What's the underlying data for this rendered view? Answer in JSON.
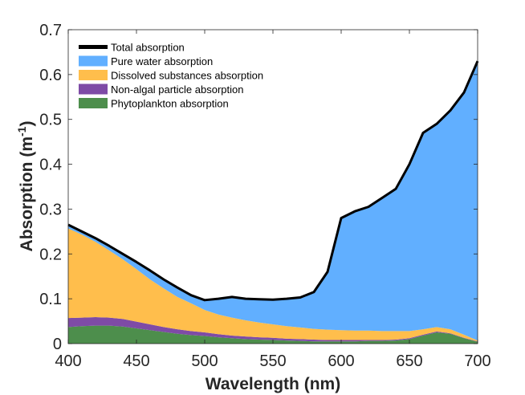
{
  "chart_data": {
    "type": "area",
    "stacked": true,
    "title": "",
    "xlabel": "Wavelength (nm)",
    "ylabel": "Absorption (m",
    "ylabel_sup": "-1",
    "ylabel_close": ")",
    "xlim": [
      400,
      700
    ],
    "ylim": [
      0,
      0.7
    ],
    "xticks": [
      "400",
      "450",
      "500",
      "550",
      "600",
      "650",
      "700"
    ],
    "yticks": [
      "0",
      "0.1",
      "0.2",
      "0.3",
      "0.4",
      "0.5",
      "0.6",
      "0.7"
    ],
    "grid": false,
    "legend_position": "top-left",
    "x": [
      400,
      410,
      420,
      430,
      440,
      450,
      460,
      470,
      480,
      490,
      500,
      510,
      520,
      530,
      540,
      550,
      560,
      570,
      580,
      590,
      600,
      610,
      620,
      630,
      640,
      650,
      660,
      670,
      680,
      690,
      700
    ],
    "series": [
      {
        "name": "Total absorption",
        "color": "#000000",
        "kind": "line",
        "values": [
          0.265,
          0.25,
          0.235,
          0.218,
          0.2,
          0.182,
          0.163,
          0.143,
          0.125,
          0.108,
          0.097,
          0.1,
          0.104,
          0.1,
          0.099,
          0.098,
          0.1,
          0.103,
          0.115,
          0.16,
          0.28,
          0.295,
          0.305,
          0.325,
          0.345,
          0.4,
          0.47,
          0.49,
          0.52,
          0.56,
          0.63
        ]
      },
      {
        "name": "Pure water absorption",
        "color": "#61AFFF",
        "kind": "area",
        "values": [
          0.008,
          0.007,
          0.008,
          0.01,
          0.012,
          0.016,
          0.02,
          0.02,
          0.021,
          0.018,
          0.022,
          0.035,
          0.046,
          0.048,
          0.052,
          0.055,
          0.061,
          0.067,
          0.082,
          0.129,
          0.25,
          0.266,
          0.276,
          0.297,
          0.317,
          0.372,
          0.438,
          0.453,
          0.488,
          0.54,
          0.623
        ]
      },
      {
        "name": "Dissolved substances absorption",
        "color": "#FFBE4C",
        "kind": "area",
        "values": [
          0.2,
          0.185,
          0.168,
          0.15,
          0.133,
          0.117,
          0.1,
          0.086,
          0.072,
          0.062,
          0.05,
          0.044,
          0.04,
          0.036,
          0.033,
          0.03,
          0.028,
          0.026,
          0.024,
          0.023,
          0.022,
          0.021,
          0.021,
          0.02,
          0.019,
          0.016,
          0.012,
          0.01,
          0.009,
          0.007,
          0.002
        ]
      },
      {
        "name": "Non-algal particle absorption",
        "color": "#7E4BA6",
        "kind": "area",
        "values": [
          0.02,
          0.019,
          0.019,
          0.018,
          0.017,
          0.015,
          0.013,
          0.011,
          0.01,
          0.009,
          0.008,
          0.007,
          0.006,
          0.006,
          0.005,
          0.005,
          0.004,
          0.004,
          0.004,
          0.003,
          0.003,
          0.003,
          0.002,
          0.002,
          0.002,
          0.002,
          0.002,
          0.002,
          0.001,
          0.001,
          0.001
        ]
      },
      {
        "name": "Phytoplankton absorption",
        "color": "#4D8E4C",
        "kind": "area",
        "values": [
          0.037,
          0.039,
          0.04,
          0.04,
          0.038,
          0.034,
          0.03,
          0.026,
          0.022,
          0.019,
          0.017,
          0.014,
          0.012,
          0.01,
          0.009,
          0.008,
          0.007,
          0.006,
          0.005,
          0.005,
          0.005,
          0.005,
          0.006,
          0.006,
          0.007,
          0.01,
          0.018,
          0.025,
          0.022,
          0.012,
          0.004
        ]
      }
    ]
  }
}
